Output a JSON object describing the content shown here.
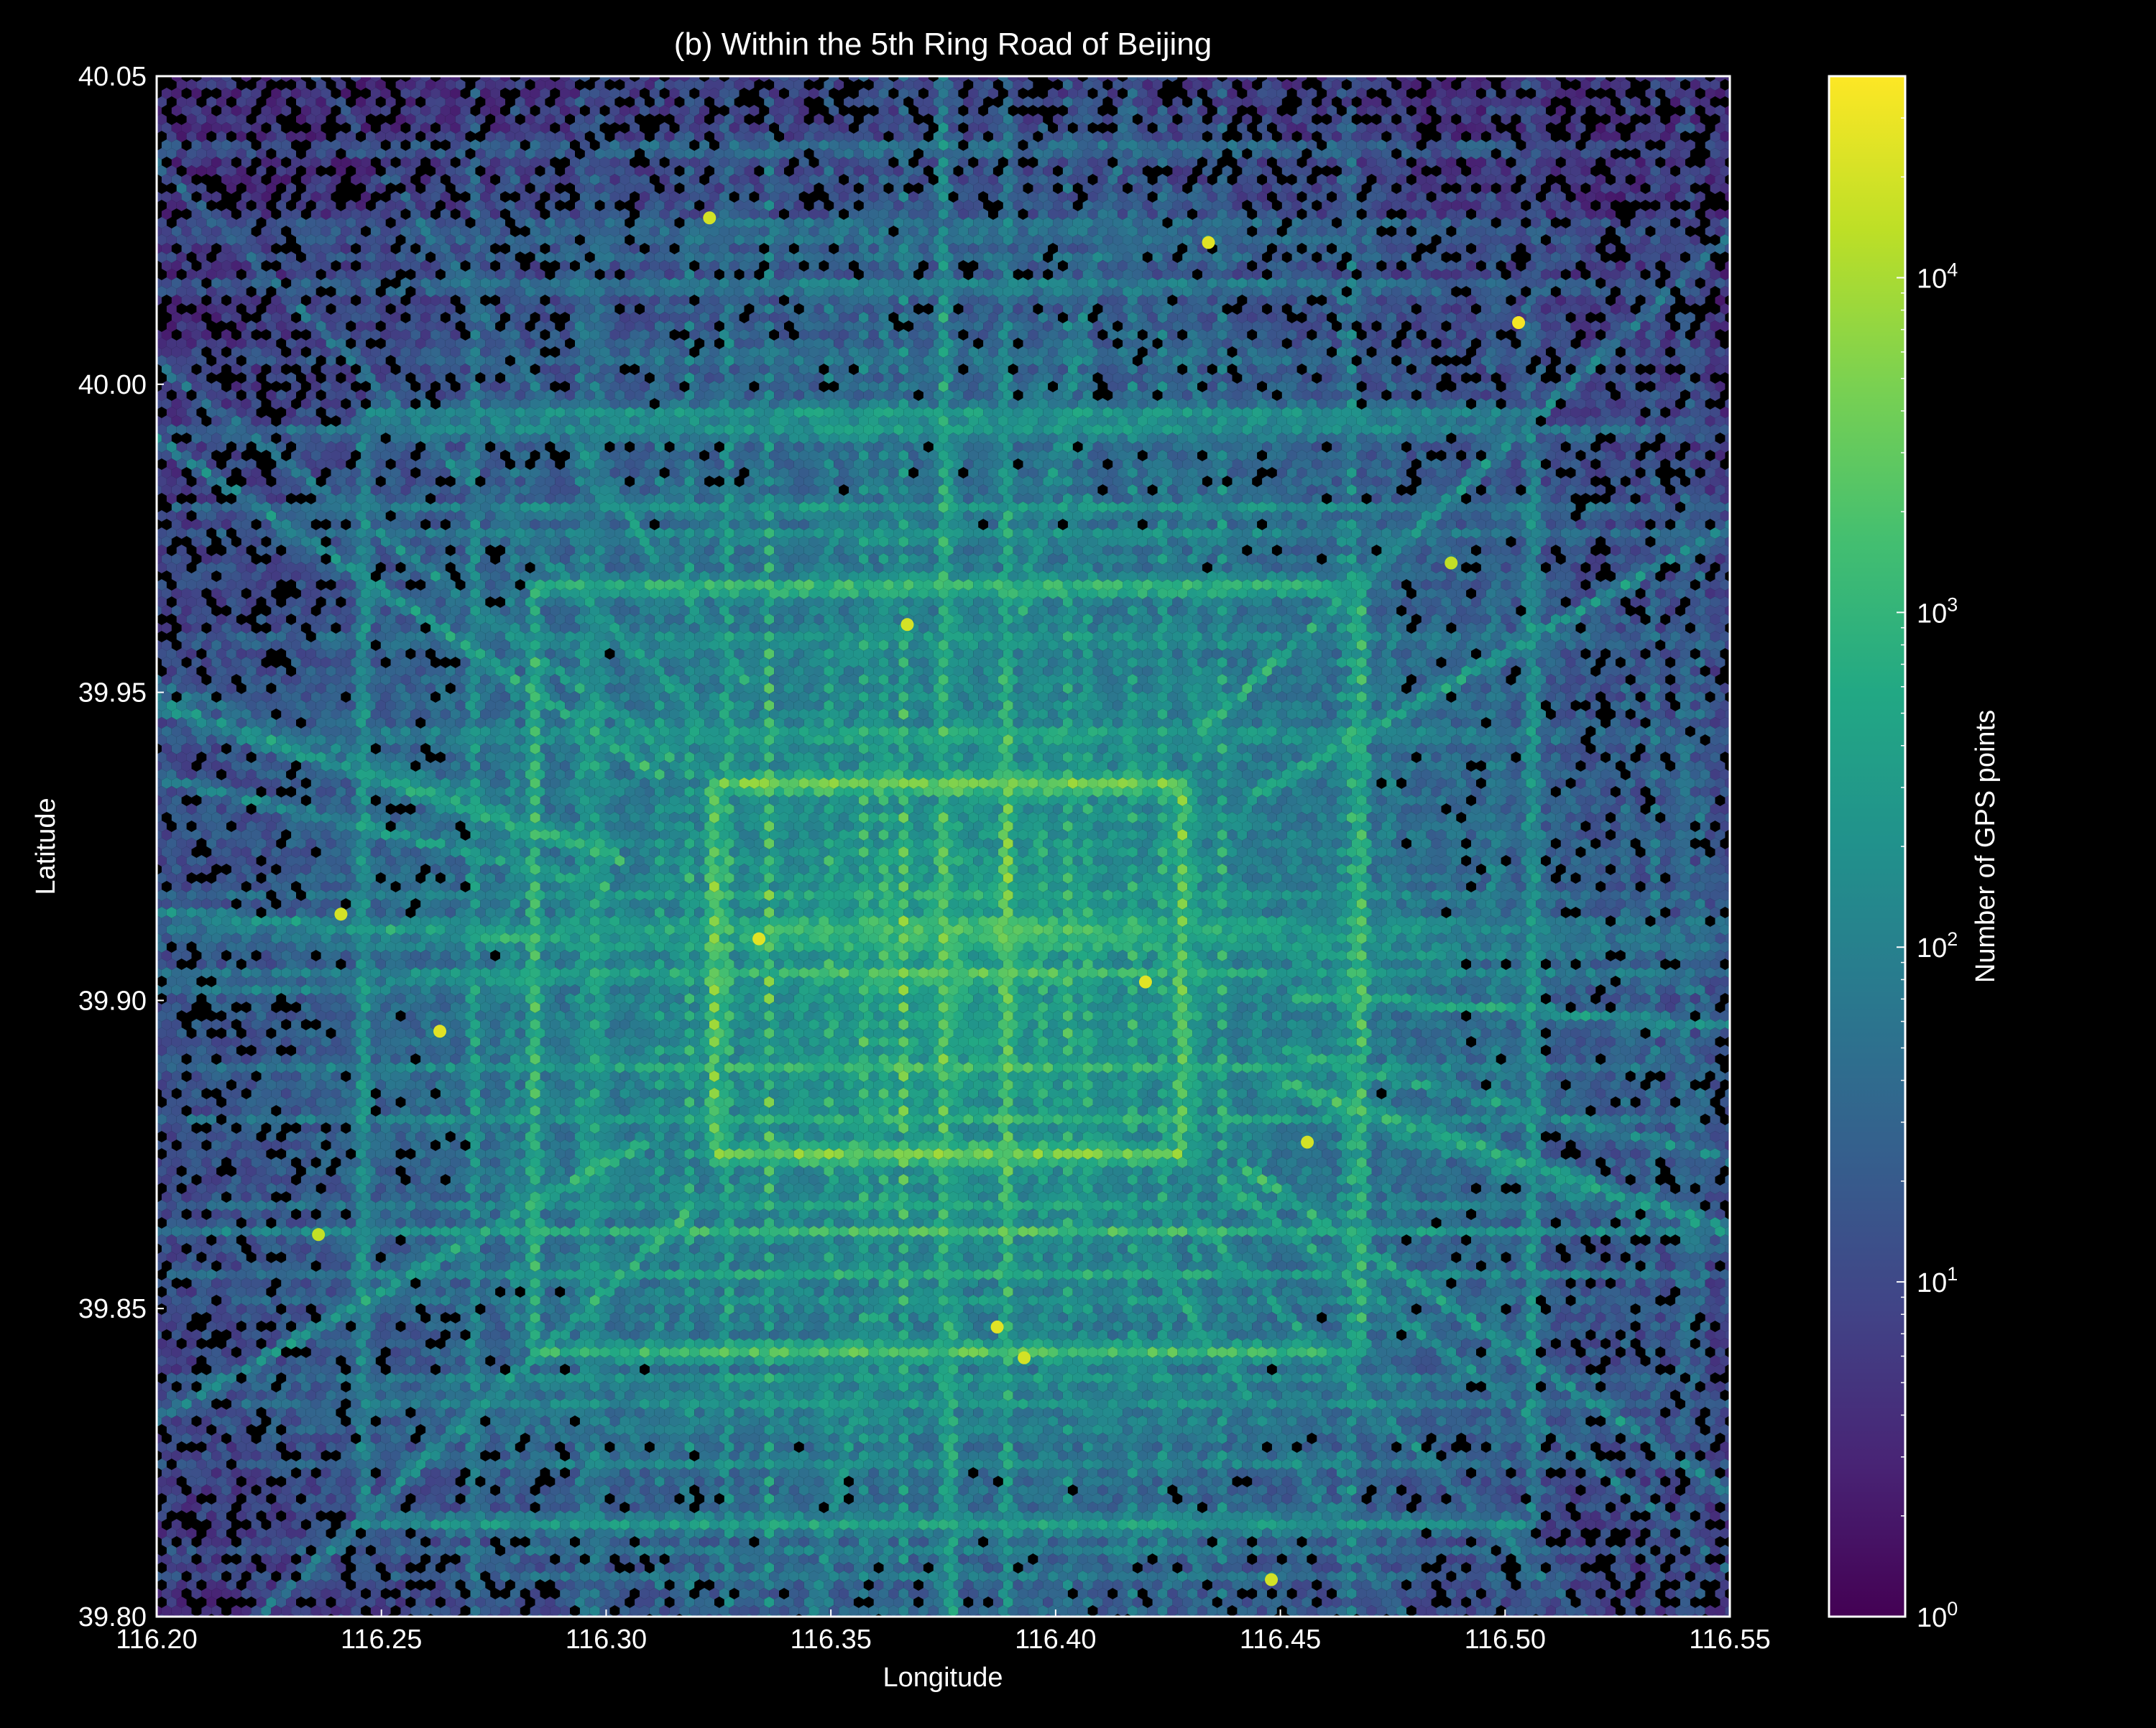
{
  "chart_data": {
    "type": "heatmap",
    "subtype": "hexbin",
    "title": "(b) Within the 5th Ring Road of Beijing",
    "xlabel": "Longitude",
    "ylabel": "Latitude",
    "xlim": [
      116.2,
      116.55
    ],
    "ylim": [
      39.8,
      40.05
    ],
    "xticks": [
      "116.20",
      "116.25",
      "116.30",
      "116.35",
      "116.40",
      "116.45",
      "116.50",
      "116.55"
    ],
    "yticks": [
      "39.80",
      "39.85",
      "39.90",
      "39.95",
      "40.00",
      "40.05"
    ],
    "colorbar": {
      "label": "Number of GPS points",
      "scale": "log",
      "colormap": "viridis",
      "range": [
        1,
        40000
      ],
      "ticks": [
        {
          "base": "10",
          "exp": "0",
          "value": 1
        },
        {
          "base": "10",
          "exp": "1",
          "value": 10
        },
        {
          "base": "10",
          "exp": "2",
          "value": 100
        },
        {
          "base": "10",
          "exp": "3",
          "value": 1000
        },
        {
          "base": "10",
          "exp": "4",
          "value": 10000
        }
      ]
    },
    "background_color": "#000000",
    "grid": false,
    "hotspots": [
      {
        "lon": 116.323,
        "lat": 40.027,
        "count": 20000
      },
      {
        "lon": 116.434,
        "lat": 40.023,
        "count": 25000
      },
      {
        "lon": 116.503,
        "lat": 40.01,
        "count": 35000
      },
      {
        "lon": 116.367,
        "lat": 39.961,
        "count": 20000
      },
      {
        "lon": 116.241,
        "lat": 39.914,
        "count": 20000
      },
      {
        "lon": 116.334,
        "lat": 39.91,
        "count": 25000
      },
      {
        "lon": 116.263,
        "lat": 39.895,
        "count": 25000
      },
      {
        "lon": 116.42,
        "lat": 39.903,
        "count": 25000
      },
      {
        "lon": 116.456,
        "lat": 39.877,
        "count": 20000
      },
      {
        "lon": 116.236,
        "lat": 39.862,
        "count": 15000
      },
      {
        "lon": 116.387,
        "lat": 39.847,
        "count": 25000
      },
      {
        "lon": 116.393,
        "lat": 39.842,
        "count": 20000
      },
      {
        "lon": 116.448,
        "lat": 39.806,
        "count": 20000
      },
      {
        "lon": 116.488,
        "lat": 39.971,
        "count": 15000
      }
    ],
    "density_note_points": [
      {
        "lon": 116.375,
        "lat": 39.925,
        "count": 3000
      },
      {
        "lon": 116.3,
        "lat": 39.925,
        "count": 800
      },
      {
        "lon": 116.45,
        "lat": 39.925,
        "count": 800
      },
      {
        "lon": 116.375,
        "lat": 39.83,
        "count": 300
      },
      {
        "lon": 116.22,
        "lat": 40.03,
        "count": 5
      }
    ]
  }
}
